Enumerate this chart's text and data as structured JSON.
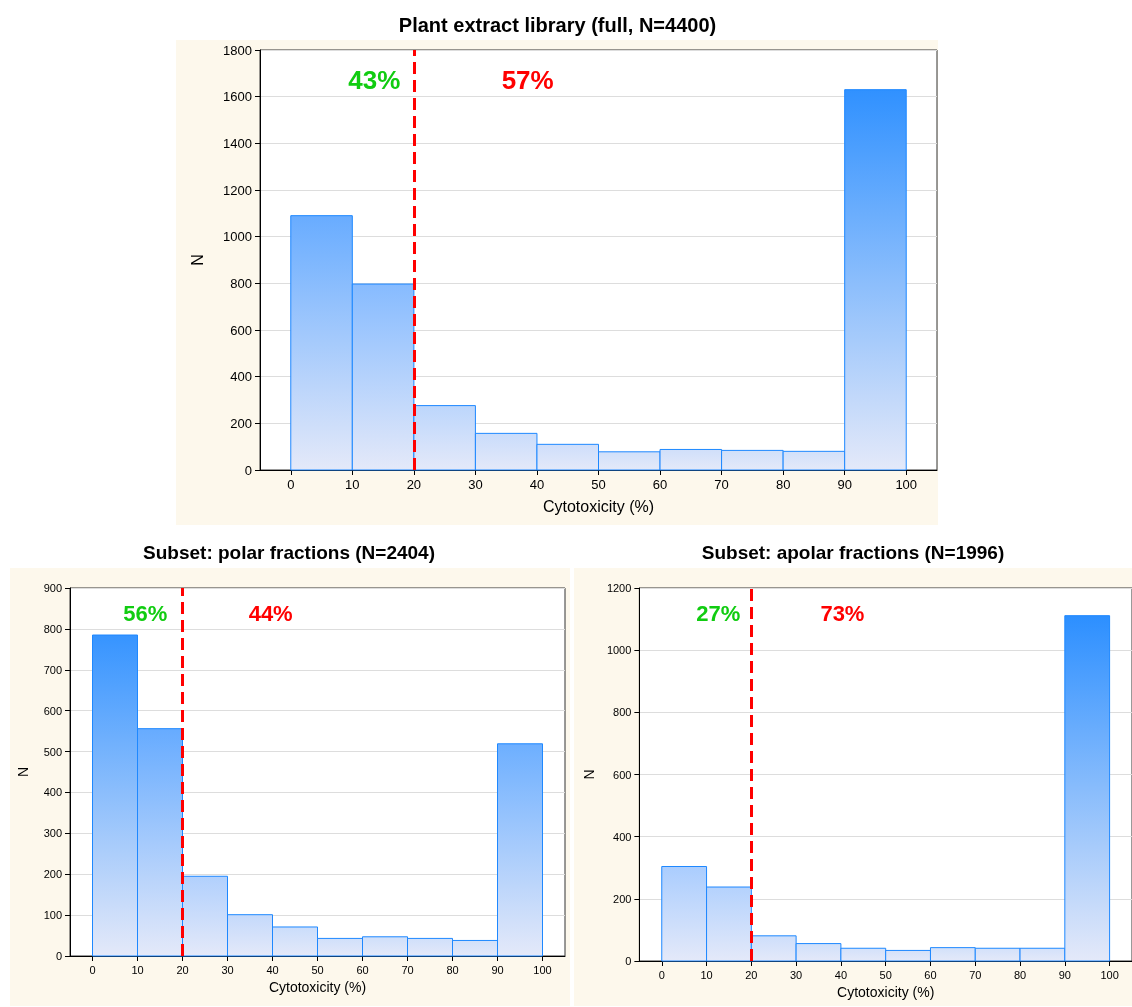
{
  "chart_data": [
    {
      "type": "histogram",
      "title": "Plant extract library (full, N=4400)",
      "xlabel": "Cytotoxicity (%)",
      "ylabel": "N",
      "bins": [
        0,
        10,
        20,
        30,
        40,
        50,
        60,
        70,
        80,
        90,
        100
      ],
      "values": [
        1090,
        797,
        276,
        157,
        110,
        78,
        88,
        84,
        80,
        1630
      ],
      "color": "#1e88ff",
      "xlim": [
        -5,
        105
      ],
      "xticks": [
        0,
        10,
        20,
        30,
        40,
        50,
        60,
        70,
        80,
        90,
        100
      ],
      "ylim": [
        0,
        1800
      ],
      "yticks": [
        0,
        200,
        400,
        600,
        800,
        1000,
        1200,
        1400,
        1600,
        1800
      ],
      "grid": "y",
      "ref_lines": [
        {
          "axis": "x",
          "value": 20,
          "color": "#ff0000",
          "line_style": "dashed"
        }
      ],
      "annotations": [
        "43%",
        "57%"
      ]
    },
    {
      "type": "histogram",
      "title": "Subset: polar fractions (N=2404)",
      "xlabel": "Cytotoxicity (%)",
      "ylabel": "N",
      "bins": [
        0,
        10,
        20,
        30,
        40,
        50,
        60,
        70,
        80,
        90,
        100
      ],
      "values": [
        785,
        556,
        195,
        101,
        71,
        43,
        47,
        43,
        38,
        519
      ],
      "color": "#1e88ff",
      "xlim": [
        -5,
        105
      ],
      "xticks": [
        0,
        10,
        20,
        30,
        40,
        50,
        60,
        70,
        80,
        90,
        100
      ],
      "ylim": [
        0,
        900
      ],
      "yticks": [
        0,
        100,
        200,
        300,
        400,
        500,
        600,
        700,
        800,
        900
      ],
      "grid": "y",
      "ref_lines": [
        {
          "axis": "x",
          "value": 20,
          "color": "#ff0000",
          "line_style": "dashed"
        }
      ],
      "annotations": [
        "56%",
        "44%"
      ]
    },
    {
      "type": "histogram",
      "title": "Subset: apolar fractions (N=1996)",
      "xlabel": "Cytotoxicity (%)",
      "ylabel": "N",
      "bins": [
        0,
        10,
        20,
        30,
        40,
        50,
        60,
        70,
        80,
        90,
        100
      ],
      "values": [
        304,
        238,
        81,
        56,
        41,
        34,
        43,
        41,
        41,
        1111
      ],
      "color": "#1e88ff",
      "xlim": [
        -5,
        105
      ],
      "xticks": [
        0,
        10,
        20,
        30,
        40,
        50,
        60,
        70,
        80,
        90,
        100
      ],
      "ylim": [
        0,
        1200
      ],
      "yticks": [
        0,
        200,
        400,
        600,
        800,
        1000,
        1200
      ],
      "grid": "y",
      "ref_lines": [
        {
          "axis": "x",
          "value": 20,
          "color": "#ff0000",
          "line_style": "dashed"
        }
      ],
      "annotations": [
        "27%",
        "73%"
      ]
    }
  ]
}
